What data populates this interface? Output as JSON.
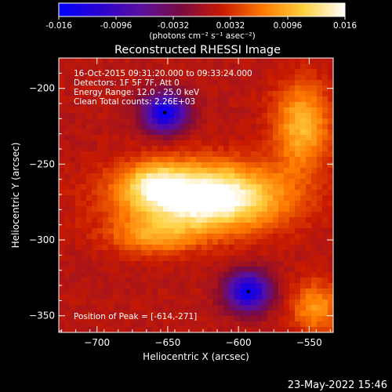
{
  "colorbar": {
    "tick_labels": [
      "-0.016",
      "-0.0096",
      "-0.0032",
      "0.0032",
      "0.0096",
      "0.016"
    ],
    "tick_values": [
      -0.016,
      -0.0096,
      -0.0032,
      0.0032,
      0.0096,
      0.016
    ],
    "range": [
      -0.016,
      0.016
    ],
    "units_label": "(photons cm⁻² s⁻¹ asec⁻²)",
    "colors": [
      "#0000ff",
      "#2a00d0",
      "#5a10a0",
      "#7a0a40",
      "#c81a00",
      "#ff7a00",
      "#ffd040",
      "#ffffff"
    ]
  },
  "chart_data": {
    "type": "heatmap",
    "title": "Reconstructed RHESSI Image",
    "xlabel": "Heliocentric X (arcsec)",
    "ylabel": "Heliocentric Y (arcsec)",
    "xlim": [
      -727,
      -533
    ],
    "ylim": [
      -361,
      -180
    ],
    "x_ticks": [
      -700,
      -650,
      -600,
      -550
    ],
    "x_tick_labels": [
      "−700",
      "−650",
      "−600",
      "−550"
    ],
    "y_ticks": [
      -200,
      -250,
      -300,
      -350
    ],
    "y_tick_labels": [
      "−200",
      "−250",
      "−300",
      "−350"
    ],
    "grid": false,
    "info_lines": [
      "16-Oct-2015 09:31:20.000 to 09:33:24.000",
      "Detectors: 1F 5F 7F, Att 0",
      "Energy Range: 12.0 - 25.0 keV",
      "Clean    Total counts: 2.26E+03"
    ],
    "peak_note": "Position of Peak = [-614,-271]",
    "peak": [
      -614,
      -271
    ],
    "markers": [
      [
        -652,
        -216
      ],
      [
        -593,
        -334
      ]
    ],
    "sources": [
      {
        "x": -625,
        "y": -272,
        "sx": 38,
        "sy": 15,
        "amp": 0.018
      },
      {
        "x": -660,
        "y": -262,
        "sx": 14,
        "sy": 9,
        "amp": 0.006
      },
      {
        "x": -660,
        "y": -298,
        "sx": 22,
        "sy": 8,
        "amp": 0.006
      },
      {
        "x": -555,
        "y": -225,
        "sx": 14,
        "sy": 20,
        "amp": 0.009
      },
      {
        "x": -545,
        "y": -345,
        "sx": 12,
        "sy": 12,
        "amp": 0.007
      },
      {
        "x": -652,
        "y": -216,
        "sx": 11,
        "sy": 9,
        "amp": -0.016
      },
      {
        "x": -593,
        "y": -334,
        "sx": 11,
        "sy": 9,
        "amp": -0.016
      }
    ]
  },
  "footer": {
    "date": "23-May-2022 15:46"
  }
}
